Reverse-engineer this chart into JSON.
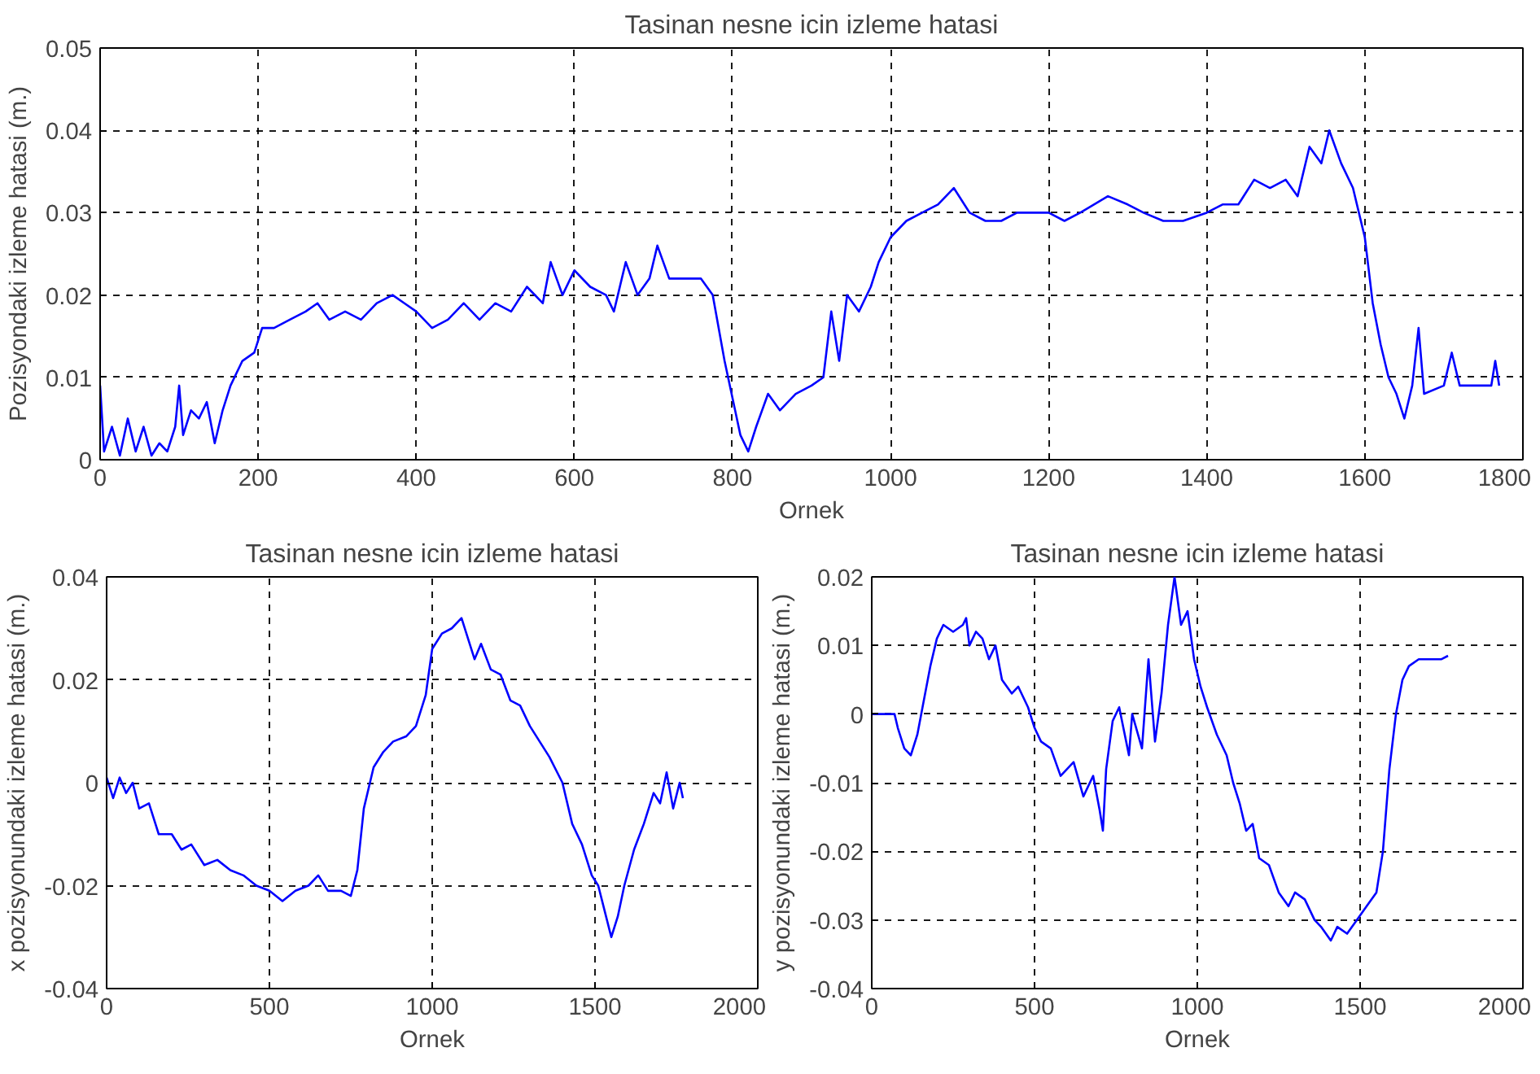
{
  "chart_data": [
    {
      "type": "line",
      "title": "Tasinan nesne icin izleme hatasi",
      "xlabel": "Ornek",
      "ylabel": "Pozisyondaki izleme hatasi (m.)",
      "xlim": [
        0,
        1800
      ],
      "ylim": [
        0,
        0.05
      ],
      "xticks": [
        0,
        200,
        400,
        600,
        800,
        1000,
        1200,
        1400,
        1600,
        1800
      ],
      "yticks": [
        0,
        0.01,
        0.02,
        0.03,
        0.04,
        0.05
      ],
      "grid": true,
      "line_style": "solid",
      "series": [
        {
          "color": "#0000ff",
          "x": [
            0,
            5,
            15,
            25,
            35,
            45,
            55,
            65,
            75,
            85,
            95,
            100,
            105,
            115,
            125,
            135,
            145,
            155,
            165,
            180,
            195,
            205,
            220,
            240,
            260,
            275,
            290,
            310,
            330,
            350,
            370,
            385,
            400,
            420,
            440,
            460,
            480,
            500,
            520,
            540,
            560,
            570,
            585,
            600,
            620,
            640,
            650,
            665,
            680,
            695,
            705,
            720,
            740,
            760,
            775,
            790,
            810,
            820,
            830,
            845,
            860,
            880,
            900,
            915,
            925,
            935,
            945,
            960,
            975,
            985,
            1000,
            1020,
            1040,
            1060,
            1080,
            1100,
            1120,
            1140,
            1160,
            1180,
            1200,
            1220,
            1240,
            1275,
            1300,
            1320,
            1345,
            1370,
            1400,
            1420,
            1440,
            1460,
            1480,
            1500,
            1515,
            1530,
            1545,
            1555,
            1570,
            1585,
            1600,
            1610,
            1620,
            1630,
            1640,
            1650,
            1660,
            1668,
            1675,
            1700,
            1710,
            1720,
            1760,
            1765,
            1770
          ],
          "values": [
            0.009,
            0.001,
            0.004,
            0.0005,
            0.005,
            0.001,
            0.004,
            0.0005,
            0.002,
            0.001,
            0.004,
            0.009,
            0.003,
            0.006,
            0.005,
            0.007,
            0.002,
            0.006,
            0.009,
            0.012,
            0.013,
            0.016,
            0.016,
            0.017,
            0.018,
            0.019,
            0.017,
            0.018,
            0.017,
            0.019,
            0.02,
            0.019,
            0.018,
            0.016,
            0.017,
            0.019,
            0.017,
            0.019,
            0.018,
            0.021,
            0.019,
            0.024,
            0.02,
            0.023,
            0.021,
            0.02,
            0.018,
            0.024,
            0.02,
            0.022,
            0.026,
            0.022,
            0.022,
            0.022,
            0.02,
            0.012,
            0.003,
            0.001,
            0.004,
            0.008,
            0.006,
            0.008,
            0.009,
            0.01,
            0.018,
            0.012,
            0.02,
            0.018,
            0.021,
            0.024,
            0.027,
            0.029,
            0.03,
            0.031,
            0.033,
            0.03,
            0.029,
            0.029,
            0.03,
            0.03,
            0.03,
            0.029,
            0.03,
            0.032,
            0.031,
            0.03,
            0.029,
            0.029,
            0.03,
            0.031,
            0.031,
            0.034,
            0.033,
            0.034,
            0.032,
            0.038,
            0.036,
            0.04,
            0.036,
            0.033,
            0.027,
            0.019,
            0.014,
            0.01,
            0.008,
            0.005,
            0.009,
            0.016,
            0.008,
            0.009,
            0.013,
            0.009,
            0.009,
            0.012,
            0.009
          ]
        }
      ]
    },
    {
      "type": "line",
      "title": "Tasinan nesne icin izleme hatasi",
      "xlabel": "Ornek",
      "ylabel": "x pozisyonundaki izleme hatasi (m.)",
      "xlim": [
        0,
        2000
      ],
      "ylim": [
        -0.04,
        0.04
      ],
      "xticks": [
        0,
        500,
        1000,
        1500,
        2000
      ],
      "yticks": [
        -0.04,
        -0.02,
        0,
        0.02,
        0.04
      ],
      "grid": true,
      "line_style": "solid",
      "series": [
        {
          "color": "#0000ff",
          "x": [
            0,
            20,
            40,
            60,
            80,
            100,
            130,
            160,
            200,
            230,
            260,
            300,
            340,
            380,
            420,
            460,
            500,
            540,
            580,
            620,
            650,
            680,
            720,
            750,
            770,
            790,
            820,
            850,
            880,
            920,
            950,
            980,
            1000,
            1030,
            1060,
            1090,
            1110,
            1130,
            1150,
            1180,
            1210,
            1240,
            1270,
            1300,
            1330,
            1360,
            1400,
            1430,
            1460,
            1490,
            1510,
            1530,
            1550,
            1570,
            1590,
            1620,
            1650,
            1680,
            1700,
            1720,
            1740,
            1760,
            1770
          ],
          "values": [
            0.001,
            -0.003,
            0.001,
            -0.002,
            0.0,
            -0.005,
            -0.004,
            -0.01,
            -0.01,
            -0.013,
            -0.012,
            -0.016,
            -0.015,
            -0.017,
            -0.018,
            -0.02,
            -0.021,
            -0.023,
            -0.021,
            -0.02,
            -0.018,
            -0.021,
            -0.021,
            -0.022,
            -0.017,
            -0.005,
            0.003,
            0.006,
            0.008,
            0.009,
            0.011,
            0.017,
            0.026,
            0.029,
            0.03,
            0.032,
            0.028,
            0.024,
            0.027,
            0.022,
            0.021,
            0.016,
            0.015,
            0.011,
            0.008,
            0.005,
            0.0,
            -0.008,
            -0.012,
            -0.018,
            -0.02,
            -0.025,
            -0.03,
            -0.026,
            -0.02,
            -0.013,
            -0.008,
            -0.002,
            -0.004,
            0.002,
            -0.005,
            0.0,
            -0.003
          ]
        }
      ]
    },
    {
      "type": "line",
      "title": "Tasinan nesne icin izleme hatasi",
      "xlabel": "Ornek",
      "ylabel": "y pozisyonundaki izleme hatasi (m.)",
      "xlim": [
        0,
        2000
      ],
      "ylim": [
        -0.04,
        0.02
      ],
      "xticks": [
        0,
        500,
        1000,
        1500,
        2000
      ],
      "yticks": [
        -0.04,
        -0.03,
        -0.02,
        -0.01,
        0,
        0.01,
        0.02
      ],
      "grid": true,
      "line_style": "solid",
      "series": [
        {
          "color": "#0000ff",
          "x": [
            0,
            70,
            80,
            100,
            120,
            140,
            160,
            180,
            200,
            220,
            250,
            280,
            290,
            300,
            320,
            340,
            360,
            380,
            400,
            430,
            450,
            480,
            500,
            520,
            550,
            580,
            620,
            650,
            680,
            700,
            710,
            720,
            740,
            760,
            790,
            800,
            830,
            850,
            870,
            890,
            910,
            930,
            950,
            970,
            990,
            1010,
            1030,
            1060,
            1090,
            1110,
            1130,
            1150,
            1170,
            1190,
            1220,
            1250,
            1280,
            1300,
            1330,
            1360,
            1380,
            1410,
            1430,
            1460,
            1490,
            1520,
            1550,
            1570,
            1590,
            1610,
            1630,
            1650,
            1680,
            1750,
            1770
          ],
          "values": [
            0.0,
            0.0,
            -0.002,
            -0.005,
            -0.006,
            -0.003,
            0.002,
            0.007,
            0.011,
            0.013,
            0.012,
            0.013,
            0.014,
            0.01,
            0.012,
            0.011,
            0.008,
            0.01,
            0.005,
            0.003,
            0.004,
            0.001,
            -0.002,
            -0.004,
            -0.005,
            -0.009,
            -0.007,
            -0.012,
            -0.009,
            -0.014,
            -0.017,
            -0.008,
            -0.001,
            0.001,
            -0.006,
            0.0,
            -0.005,
            0.008,
            -0.004,
            0.003,
            0.013,
            0.02,
            0.013,
            0.015,
            0.008,
            0.004,
            0.001,
            -0.003,
            -0.006,
            -0.01,
            -0.013,
            -0.017,
            -0.016,
            -0.021,
            -0.022,
            -0.026,
            -0.028,
            -0.026,
            -0.027,
            -0.03,
            -0.031,
            -0.033,
            -0.031,
            -0.032,
            -0.03,
            -0.028,
            -0.026,
            -0.02,
            -0.008,
            0.0,
            0.005,
            0.007,
            0.008,
            0.008,
            0.0085
          ]
        }
      ]
    }
  ]
}
